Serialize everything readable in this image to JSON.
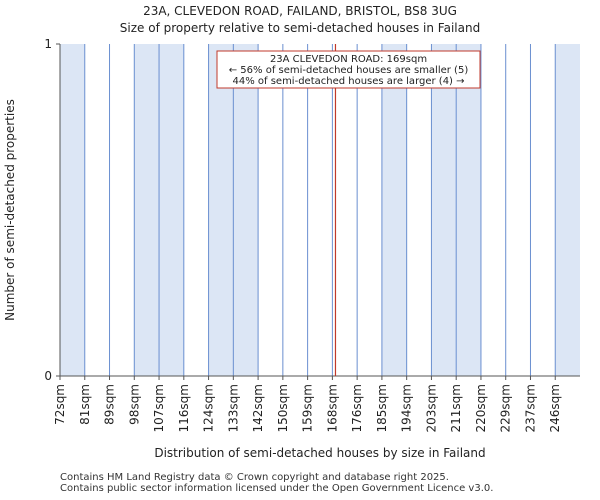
{
  "chart_data": {
    "type": "bar",
    "title": "23A, CLEVEDON ROAD, FAILAND, BRISTOL, BS8 3UG",
    "subtitle": "Size of property relative to semi-detached houses in Failand",
    "xlabel": "Distribution of semi-detached houses by size in Failand",
    "ylabel": "Number of semi-detached properties",
    "ylim": [
      0,
      1
    ],
    "yticks": [
      "0",
      "1"
    ],
    "categories": [
      "72sqm",
      "81sqm",
      "89sqm",
      "98sqm",
      "107sqm",
      "116sqm",
      "124sqm",
      "133sqm",
      "142sqm",
      "150sqm",
      "159sqm",
      "168sqm",
      "176sqm",
      "185sqm",
      "194sqm",
      "203sqm",
      "211sqm",
      "220sqm",
      "229sqm",
      "237sqm",
      "246sqm"
    ],
    "values": [
      1,
      0,
      0,
      1,
      1,
      0,
      1,
      1,
      0,
      0,
      0,
      1,
      0,
      1,
      0,
      1,
      1,
      0,
      0,
      0,
      1
    ],
    "bar_colors": [
      "#dce6f5",
      "#ffffff",
      "#ffffff",
      "#dce6f5",
      "#dce6f5",
      "#ffffff",
      "#dce6f5",
      "#dce6f5",
      "#ffffff",
      "#ffffff",
      "#ffffff",
      "#ffffff",
      "#eef3fb",
      "#dce6f5",
      "#eef3fb",
      "#dce6f5",
      "#dce6f5",
      "#eef3fb",
      "#ffffff",
      "#eef3fb",
      "#dce6f5"
    ],
    "bar_edge_color": "#6a8fd0",
    "marker": {
      "value_sqm": 169,
      "color": "#c0392b"
    },
    "annotation": {
      "line1": "23A CLEVEDON ROAD: 169sqm",
      "line2": "← 56% of semi-detached houses are smaller (5)",
      "line3": "44% of semi-detached houses are larger (4) →"
    }
  },
  "footer": {
    "line1": "Contains HM Land Registry data © Crown copyright and database right 2025.",
    "line2": "Contains public sector information licensed under the Open Government Licence v3.0."
  }
}
